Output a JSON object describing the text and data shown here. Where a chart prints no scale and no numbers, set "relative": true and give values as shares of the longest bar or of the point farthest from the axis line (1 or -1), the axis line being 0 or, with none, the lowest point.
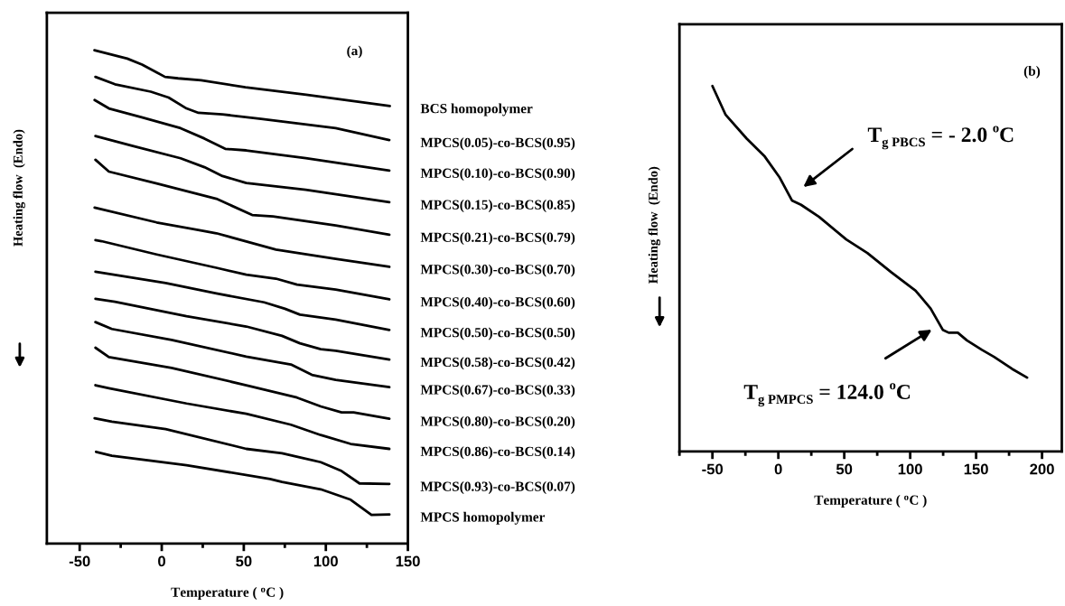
{
  "chart_data": [
    {
      "type": "line",
      "relative": true,
      "xlim": [
        -70,
        150
      ],
      "xticks": [
        -50,
        {
          "value": -25,
          "label": null
        },
        0,
        {
          "value": 25,
          "label": null
        },
        50,
        {
          "value": 75,
          "label": null
        },
        100,
        {
          "value": 125,
          "label": null
        },
        150
      ],
      "tick_labels": "x",
      "xlabel": "Temperature ( $^{o}$C )",
      "ylabel": "Heating flow  (Endo)",
      "annotations": [
        "(a)"
      ],
      "series": [
        {
          "name": "BCS homopolymer",
          "color": "#000000",
          "x": [
            -41,
            -21,
            -12,
            -3,
            2,
            10,
            24,
            51,
            88,
            139
          ],
          "values": [
            1.0,
            0.983,
            0.971,
            0.955,
            0.946,
            0.943,
            0.939,
            0.925,
            0.91,
            0.887
          ]
        },
        {
          "name": "MPCS(0.05)-co-BCS(0.95)",
          "color": "#000000",
          "x": [
            -40.4,
            -28.5,
            -6.7,
            4.2,
            15.1,
            22.4,
            36.9,
            60.5,
            106,
            138.7
          ],
          "values": [
            0.946,
            0.931,
            0.916,
            0.904,
            0.882,
            0.873,
            0.87,
            0.861,
            0.842,
            0.818
          ]
        },
        {
          "name": "MPCS(0.10)-co-BCS(0.90)",
          "color": "#000000",
          "x": [
            -40.9,
            -32.2,
            -12.2,
            11.5,
            26,
            38.7,
            51.5,
            87.8,
            138.7
          ],
          "values": [
            0.899,
            0.882,
            0.864,
            0.842,
            0.821,
            0.8,
            0.797,
            0.781,
            0.756
          ]
        },
        {
          "name": "MPCS(0.15)-co-BCS(0.85)",
          "color": "#000000",
          "x": [
            -40.4,
            -17.6,
            11.5,
            26,
            37,
            51.5,
            87.8,
            138.7
          ],
          "values": [
            0.826,
            0.806,
            0.781,
            0.763,
            0.745,
            0.731,
            0.717,
            0.692
          ]
        },
        {
          "name": "MPCS(0.21)-co-BCS(0.79)",
          "color": "#000000",
          "x": [
            -40.4,
            -32.2,
            -3.1,
            33.3,
            55.1,
            67.8,
            106,
            138.7
          ],
          "values": [
            0.778,
            0.754,
            0.73,
            0.699,
            0.666,
            0.663,
            0.645,
            0.626
          ]
        },
        {
          "name": "MPCS(0.30)-co-BCS(0.70)",
          "color": "#000000",
          "x": [
            -40.9,
            -3.1,
            33.3,
            69.6,
            106,
            138.7
          ],
          "values": [
            0.681,
            0.651,
            0.629,
            0.596,
            0.577,
            0.561
          ]
        },
        {
          "name": "MPCS(0.40)-co-BCS(0.60)",
          "color": "#000000",
          "x": [
            -40.4,
            -36.7,
            -3.1,
            33.3,
            51.5,
            69.6,
            82.4,
            106,
            138.7
          ],
          "values": [
            0.615,
            0.613,
            0.586,
            0.559,
            0.545,
            0.537,
            0.525,
            0.515,
            0.495
          ]
        },
        {
          "name": "MPCS(0.50)-co-BCS(0.50)",
          "color": "#000000",
          "x": [
            -40.4,
            2.4,
            33.3,
            62.4,
            75.1,
            84.2,
            106,
            138.7
          ],
          "values": [
            0.551,
            0.528,
            0.507,
            0.489,
            0.476,
            0.464,
            0.454,
            0.433
          ]
        },
        {
          "name": "MPCS(0.58)-co-BCS(0.42)",
          "color": "#000000",
          "x": [
            -40.4,
            -28.5,
            15.1,
            51.5,
            73.3,
            84.2,
            96.9,
            106,
            138.7
          ],
          "values": [
            0.496,
            0.49,
            0.461,
            0.44,
            0.421,
            0.406,
            0.394,
            0.391,
            0.373
          ]
        },
        {
          "name": "MPCS(0.67)-co-BCS(0.33)",
          "color": "#000000",
          "x": [
            -40.4,
            -30.4,
            6,
            51.5,
            78.7,
            91.5,
            106,
            138.7
          ],
          "values": [
            0.449,
            0.435,
            0.413,
            0.379,
            0.363,
            0.342,
            0.332,
            0.317
          ]
        },
        {
          "name": "MPCS(0.80)-co-BCS(0.20)",
          "color": "#000000",
          "x": [
            -40.4,
            -32.2,
            6,
            51.5,
            82.4,
            96.9,
            109.6,
            116.9,
            138.7
          ],
          "values": [
            0.397,
            0.378,
            0.356,
            0.321,
            0.296,
            0.278,
            0.266,
            0.266,
            0.253
          ]
        },
        {
          "name": "MPCS(0.86)-co-BCS(0.14)",
          "color": "#000000",
          "x": [
            -40.4,
            -32.2,
            15.1,
            51.5,
            78.7,
            96.9,
            115.1,
            138.7
          ],
          "values": [
            0.321,
            0.315,
            0.284,
            0.263,
            0.241,
            0.22,
            0.202,
            0.192
          ]
        },
        {
          "name": "MPCS(0.93)-co-BCS(0.07)",
          "color": "#000000",
          "x": [
            -40.9,
            -30.4,
            2.4,
            51.5,
            73.3,
            96.9,
            109.6,
            120.5,
            138.7
          ],
          "values": [
            0.254,
            0.247,
            0.232,
            0.192,
            0.183,
            0.165,
            0.147,
            0.122,
            0.121
          ]
        },
        {
          "name": "MPCS homopolymer",
          "color": "#000000",
          "x": [
            -40,
            -30.4,
            15.1,
            66,
            73.3,
            96.9,
            115.1,
            127.8,
            138.7
          ],
          "values": [
            0.186,
            0.178,
            0.159,
            0.131,
            0.125,
            0.11,
            0.089,
            0.058,
            0.059
          ]
        }
      ]
    },
    {
      "type": "line",
      "relative": true,
      "xlim": [
        -75,
        215
      ],
      "xticks": [
        {
          "value": -75,
          "label": null
        },
        -50,
        {
          "value": -25,
          "label": null
        },
        0,
        {
          "value": 25,
          "label": null
        },
        50,
        {
          "value": 75,
          "label": null
        },
        100,
        {
          "value": 125,
          "label": null
        },
        150,
        {
          "value": 175,
          "label": null
        },
        200
      ],
      "tick_labels": "x",
      "xlabel": "Temperature ( $^{o}$C )",
      "ylabel": "Heating flow  (Endo)",
      "annotations": [
        "(b)",
        "T$_{g PBCS}$ = - 2.0 $^{o}$C",
        "T$_{g PMPCS}$ = 124.0 $^{o}$C"
      ],
      "series": [
        {
          "color": "#000000",
          "x": [
            -50,
            -40.1,
            -24,
            -10.3,
            1.1,
            10.3,
            17.2,
            30.9,
            51.5,
            67.5,
            85.8,
            104.1,
            115.5,
            124.7,
            129.2,
            136.1,
            143,
            154.4,
            163.6,
            177.3,
            188.7
          ],
          "values": [
            1.0,
            0.922,
            0.856,
            0.807,
            0.749,
            0.687,
            0.675,
            0.642,
            0.58,
            0.543,
            0.49,
            0.44,
            0.391,
            0.333,
            0.325,
            0.325,
            0.304,
            0.278,
            0.259,
            0.226,
            0.202
          ]
        }
      ]
    }
  ]
}
